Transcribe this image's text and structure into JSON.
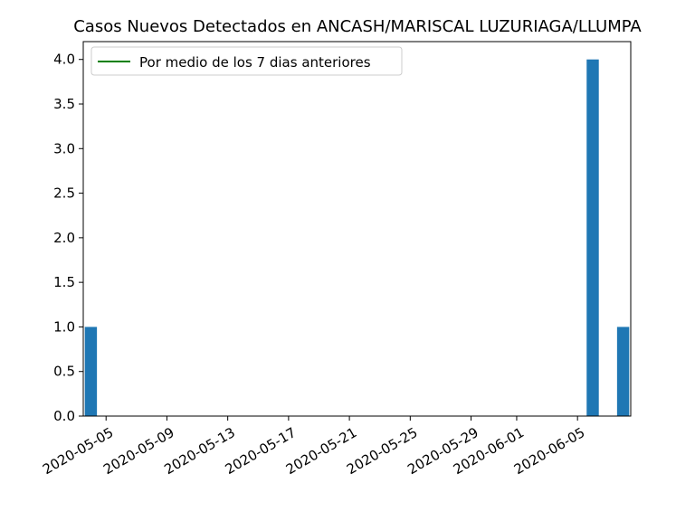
{
  "chart_data": {
    "type": "bar",
    "title": "Casos Nuevos Detectados en ANCASH/MARISCAL LUZURIAGA/LLUMPA",
    "xlabel": "",
    "ylabel": "",
    "x_range": [
      "2020-05-04",
      "2020-06-08"
    ],
    "ylim": [
      0,
      4.2
    ],
    "grid": false,
    "legend": {
      "position": "top-left",
      "entries": [
        {
          "label": "Por medio de los 7 dias anteriores",
          "color": "#008000"
        }
      ]
    },
    "bar_color": "#1f77b4",
    "x_tick_labels": [
      "2020-05-05",
      "2020-05-09",
      "2020-05-13",
      "2020-05-17",
      "2020-05-21",
      "2020-05-25",
      "2020-05-29",
      "2020-06-01",
      "2020-06-05"
    ],
    "y_tick_labels": [
      "0.0",
      "0.5",
      "1.0",
      "1.5",
      "2.0",
      "2.5",
      "3.0",
      "3.5",
      "4.0"
    ],
    "bars": [
      {
        "date": "2020-05-04",
        "value": 1
      },
      {
        "date": "2020-06-06",
        "value": 4
      },
      {
        "date": "2020-06-08",
        "value": 1
      }
    ],
    "series": [
      {
        "name": "Por medio de los 7 dias anteriores",
        "values": []
      }
    ]
  }
}
